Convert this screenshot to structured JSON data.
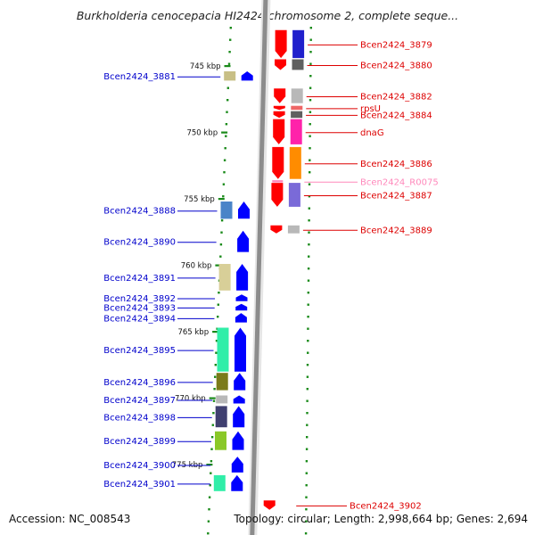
{
  "title": "Burkholderia cenocepacia HI2424 chromosome 2, complete seque...",
  "accession": "Accession: NC_008543",
  "topology": "Topology: circular; Length: 2,998,664 bp; Genes: 2,694",
  "colors": {
    "forward_gene": "#0000ff",
    "reverse_gene": "#ff0000",
    "label_forward": "#0000cc",
    "label_reverse": "#dd0000",
    "label_rna": "#ff88bb",
    "backbone": "#8c8c8c",
    "dots": "#1a8a1a"
  },
  "ticks": [
    {
      "label": "745 kbp",
      "kbp": 745
    },
    {
      "label": "750 kbp",
      "kbp": 750
    },
    {
      "label": "755 kbp",
      "kbp": 755
    },
    {
      "label": "760 kbp",
      "kbp": 760
    },
    {
      "label": "765 kbp",
      "kbp": 765
    },
    {
      "label": "770 kbp",
      "kbp": 770
    },
    {
      "label": "775 kbp",
      "kbp": 775
    }
  ],
  "left_genes": [
    {
      "label": "Bcen2424_3881",
      "start": 745.4,
      "end": 746.1,
      "cog": "#c8bf85"
    },
    {
      "label": "Bcen2424_3888",
      "start": 755.2,
      "end": 756.5,
      "cog": "#4a84c8"
    },
    {
      "label": "Bcen2424_3890",
      "start": 757.4,
      "end": 759.0,
      "cog": null
    },
    {
      "label": "Bcen2424_3891",
      "start": 759.9,
      "end": 761.9,
      "cog": "#d8cf98"
    },
    {
      "label": "Bcen2424_3892",
      "start": 762.2,
      "end": 762.7,
      "cog": null
    },
    {
      "label": "Bcen2424_3893",
      "start": 762.9,
      "end": 763.4,
      "cog": null
    },
    {
      "label": "Bcen2424_3894",
      "start": 763.6,
      "end": 764.3,
      "cog": null
    },
    {
      "label": "Bcen2424_3895",
      "start": 764.7,
      "end": 768.0,
      "cog": "#30eea8"
    },
    {
      "label": "Bcen2424_3896",
      "start": 768.1,
      "end": 769.4,
      "cog": "#7a7a1a"
    },
    {
      "label": "Bcen2424_3897",
      "start": 769.8,
      "end": 770.4,
      "cog": "#b8b8b8"
    },
    {
      "label": "Bcen2424_3898",
      "start": 770.6,
      "end": 772.2,
      "cog": "#404070"
    },
    {
      "label": "Bcen2424_3899",
      "start": 772.5,
      "end": 773.9,
      "cog": "#8ac828"
    },
    {
      "label": "Bcen2424_3900",
      "start": 774.4,
      "end": 775.6,
      "cog": null
    },
    {
      "label": "Bcen2424_3901",
      "start": 775.8,
      "end": 777.0,
      "cog": "#30eea8"
    }
  ],
  "right_genes": [
    {
      "label": "Bcen2424_3879",
      "start": 742.3,
      "end": 744.4,
      "cog": "#2020cc"
    },
    {
      "label": "Bcen2424_3880",
      "start": 744.5,
      "end": 745.3,
      "cog": "#606060"
    },
    {
      "label": "Bcen2424_3882",
      "start": 746.7,
      "end": 747.8,
      "cog": "#b8b8b8"
    },
    {
      "label": "rpsU",
      "start": 748.0,
      "end": 748.3,
      "cog": "#ee6666"
    },
    {
      "label": "Bcen2424_3884",
      "start": 748.4,
      "end": 748.9,
      "cog": "#606060"
    },
    {
      "label": "dnaG",
      "start": 749.0,
      "end": 750.9,
      "cog": "#ff22aa"
    },
    {
      "label": "Bcen2424_3886",
      "start": 751.1,
      "end": 753.5,
      "cog": "#ff8c00"
    },
    {
      "label": "Bcen2424_R0075",
      "start": 753.6,
      "end": 753.75,
      "cog": null,
      "rna": true
    },
    {
      "label": "Bcen2424_3887",
      "start": 753.8,
      "end": 755.6,
      "cog": "#7a6ad8"
    },
    {
      "label": "Bcen2424_3889",
      "start": 757.0,
      "end": 757.6,
      "cog": "#b8b8b8"
    },
    {
      "label": "Bcen2424_3902",
      "start": 777.7,
      "end": 778.4,
      "cog": null
    }
  ]
}
